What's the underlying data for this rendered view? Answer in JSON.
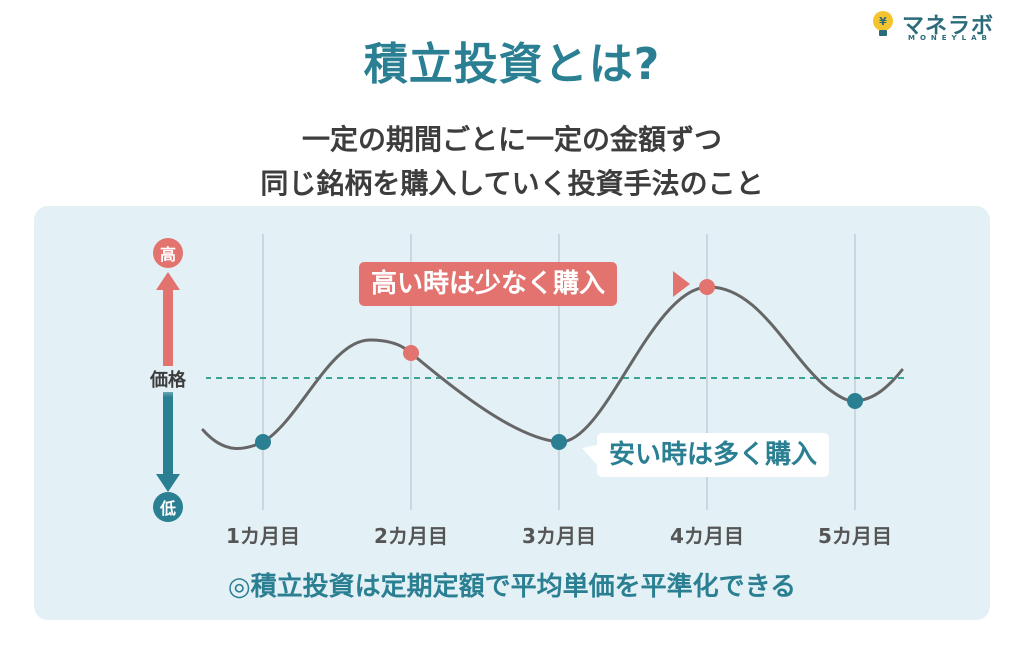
{
  "logo": {
    "name": "マネラボ",
    "sub": "MONEYLAB",
    "symbol": "¥"
  },
  "title": "積立投資とは?",
  "subtitle_lines": [
    "一定の期間ごとに一定の金額ずつ",
    "同じ銘柄を購入していく投資手法のこと"
  ],
  "axis": {
    "high": "高",
    "mid": "価格",
    "low": "低"
  },
  "callouts": {
    "high": "高い時は少なく購入",
    "low": "安い時は多く購入"
  },
  "months": [
    "1カ月目",
    "2カ月目",
    "3カ月目",
    "4カ月目",
    "5カ月目"
  ],
  "purchase_points": [
    {
      "month": "1カ月目",
      "level": "low",
      "color": "#2a7f92"
    },
    {
      "month": "2カ月目",
      "level": "high",
      "color": "#e3736f"
    },
    {
      "month": "3カ月目",
      "level": "low",
      "color": "#2a7f92"
    },
    {
      "month": "4カ月目",
      "level": "high",
      "color": "#e3736f"
    },
    {
      "month": "5カ月目",
      "level": "low",
      "color": "#2a7f92"
    }
  ],
  "summary": "◎積立投資は定期定額で平均単価を平準化できる",
  "colors": {
    "accent": "#2a7f92",
    "high": "#e3736f",
    "panel": "#e3f0f5",
    "line": "#666666",
    "text": "#3d3d3d"
  }
}
